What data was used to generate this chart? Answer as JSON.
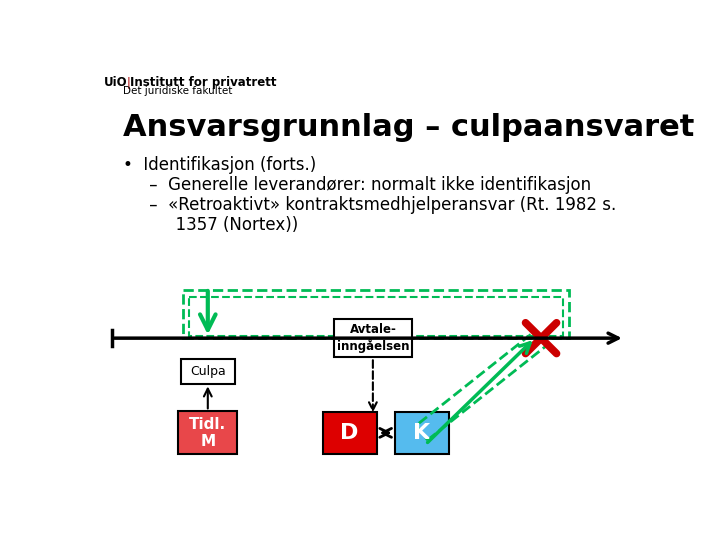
{
  "bg_color": "#ffffff",
  "title": "Ansvarsgrunnlag – culpaansvaret",
  "title_fontsize": 22,
  "bullet_lines": [
    "•  Identifikasjon (forts.)",
    "     –  Generelle leverandører: normalt ikke identifikasjon",
    "     –  «Retroaktivt» kontraktsmedhjelperansvar (Rt. 1982 s.",
    "          1357 (Nortex))"
  ],
  "bullet_fontsize": 12,
  "green_color": "#00bb55",
  "red_color": "#cc0000",
  "pink_color": "#e8474a",
  "blue_color": "#55bbee"
}
